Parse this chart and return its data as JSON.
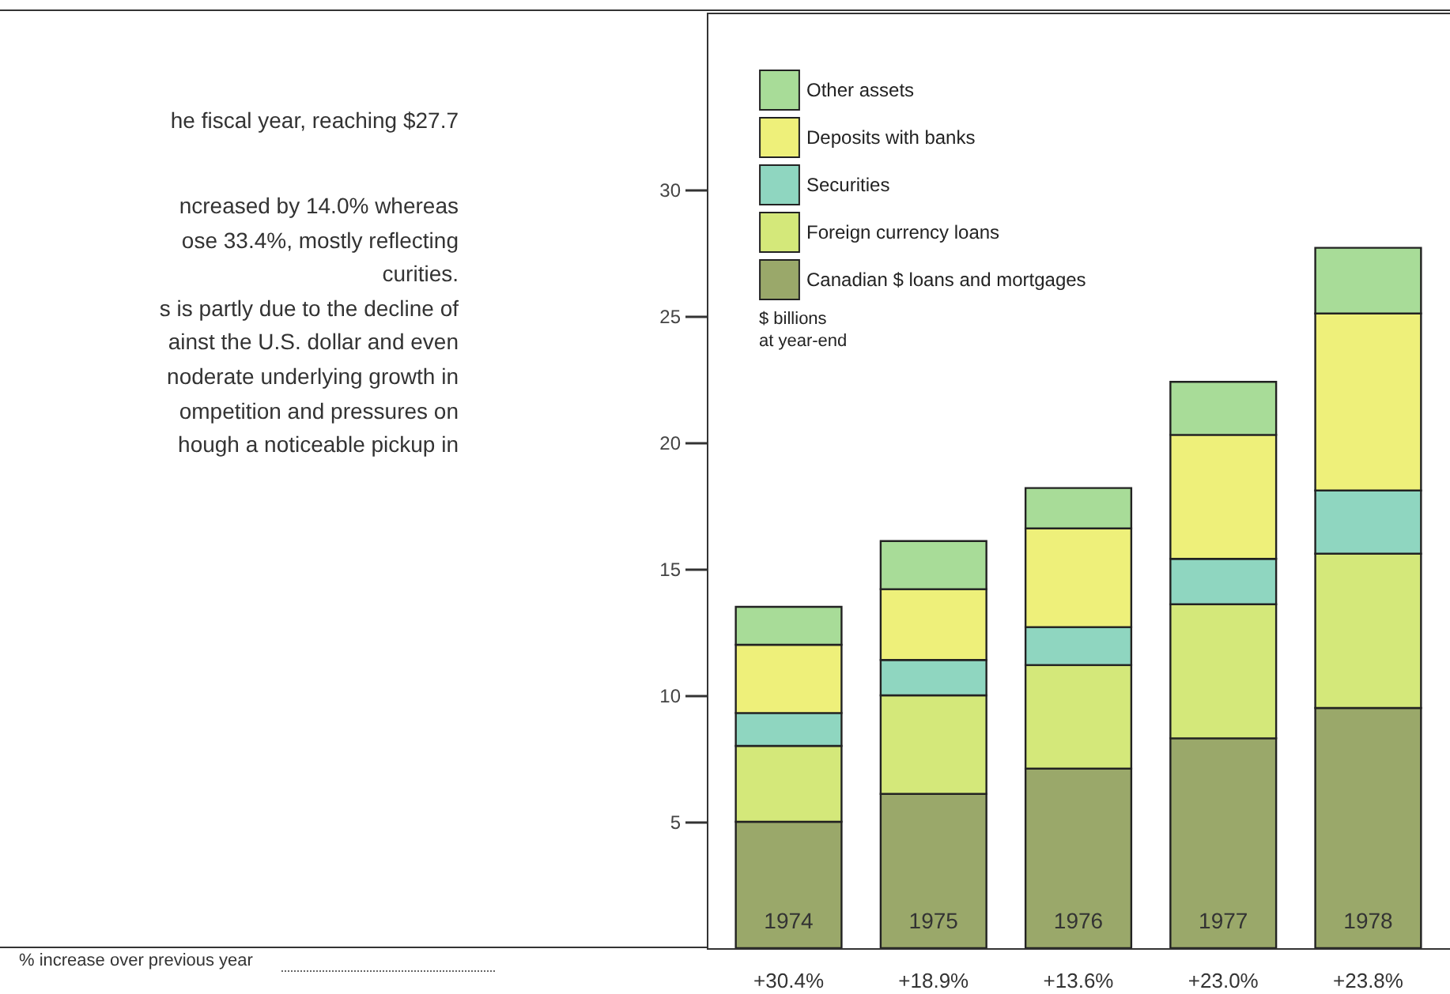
{
  "chart_data": {
    "type": "bar",
    "stacked": true,
    "ylabel": "$ billions\nat year-end",
    "categories": [
      "1974",
      "1975",
      "1976",
      "1977",
      "1978"
    ],
    "series": [
      {
        "name": "Canadian $ loans and mortgages",
        "color": "#9aa86a",
        "values": [
          5.0,
          6.1,
          7.1,
          8.3,
          9.5
        ]
      },
      {
        "name": "Foreign currency loans",
        "color": "#d4e87a",
        "values": [
          3.0,
          3.9,
          4.1,
          5.3,
          6.1
        ]
      },
      {
        "name": "Securities",
        "color": "#8fd6c0",
        "values": [
          1.3,
          1.4,
          1.5,
          1.8,
          2.5
        ]
      },
      {
        "name": "Deposits with banks",
        "color": "#eef07a",
        "values": [
          2.7,
          2.8,
          3.9,
          4.9,
          7.0
        ]
      },
      {
        "name": "Other assets",
        "color": "#a8dc98",
        "values": [
          1.5,
          1.9,
          1.6,
          2.1,
          2.6
        ]
      }
    ],
    "ylim": [
      0,
      37
    ],
    "yticks": [
      5,
      10,
      15,
      20,
      25,
      30
    ],
    "grid": false,
    "legend": "top left",
    "annotations": [
      "he fiscal year, reaching $27.7",
      "ncreased by 14.0% whereas",
      "ose 33.4%, mostly reflecting",
      "curities.",
      "s is partly due to the decline of",
      "ainst the U.S. dollar and even",
      "noderate underlying growth in",
      "ompetition and pressures on",
      "hough a noticeable pickup in",
      "% increase over previous year",
      "+30.4%",
      "+18.9%",
      "+13.6%",
      "+23.0%",
      "+23.8%"
    ]
  }
}
